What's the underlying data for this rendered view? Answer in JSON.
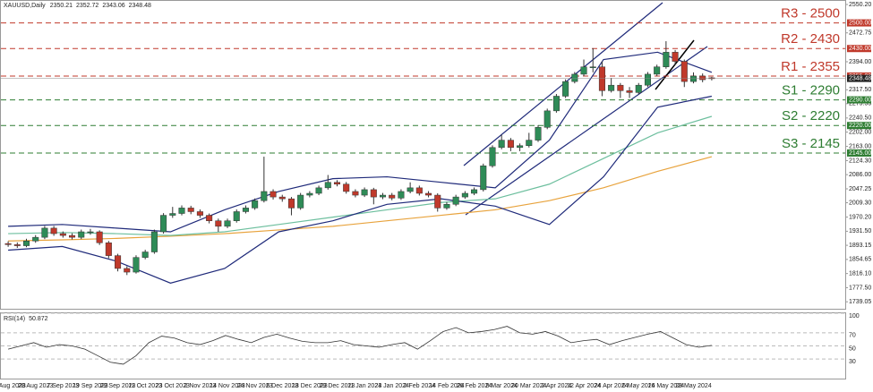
{
  "chart_data": {
    "type": "candlestick",
    "symbol": "XAUUSD,Daily",
    "up_color": "#2e8b57",
    "down_color": "#c0392b",
    "open": [
      1898,
      1895,
      1892,
      1905,
      1915,
      1940,
      1925,
      1920,
      1915,
      1930,
      1930,
      1900,
      1865,
      1830,
      1820,
      1860,
      1875,
      1930,
      1975,
      1980,
      1995,
      1985,
      1975,
      1960,
      1945,
      1960,
      1985,
      1995,
      2015,
      2040,
      2025,
      2020,
      1995,
      2030,
      2035,
      2050,
      2065,
      2060,
      2040,
      2030,
      2045,
      2025,
      2030,
      2022,
      2040,
      2050,
      2035,
      2030,
      1995,
      2005,
      2025,
      2035,
      2045,
      2110,
      2160,
      2180,
      2160,
      2165,
      2180,
      2215,
      2260,
      2300,
      2340,
      2360,
      2380,
      2380,
      2315,
      2330,
      2315,
      2310,
      2330,
      2360,
      2380,
      2420,
      2395,
      2340,
      2355,
      2350.21
    ],
    "high": [
      1904,
      1901,
      1911,
      1921,
      1946,
      1946,
      1931,
      1926,
      1936,
      1938,
      1934,
      1905,
      1870,
      1836,
      1866,
      1881,
      1936,
      1981,
      1998,
      2002,
      2001,
      1991,
      1980,
      1966,
      1966,
      1991,
      2002,
      2021,
      2135,
      2046,
      2031,
      2025,
      2036,
      2041,
      2056,
      2085,
      2071,
      2066,
      2046,
      2051,
      2050,
      2036,
      2036,
      2046,
      2065,
      2056,
      2041,
      2035,
      2011,
      2031,
      2041,
      2051,
      2116,
      2166,
      2195,
      2186,
      2171,
      2200,
      2221,
      2266,
      2306,
      2346,
      2366,
      2400,
      2431,
      2395,
      2350,
      2336,
      2325,
      2336,
      2366,
      2386,
      2450,
      2426,
      2400,
      2365,
      2362,
      2352.72
    ],
    "low": [
      1889,
      1886,
      1888,
      1900,
      1910,
      1919,
      1914,
      1909,
      1910,
      1922,
      1894,
      1858,
      1822,
      1812,
      1816,
      1855,
      1870,
      1925,
      1968,
      1975,
      1978,
      1968,
      1953,
      1930,
      1940,
      1955,
      1980,
      1990,
      2010,
      2018,
      2012,
      1975,
      1990,
      2024,
      2030,
      2045,
      2054,
      2034,
      2024,
      2025,
      2005,
      2019,
      2016,
      2017,
      2035,
      2029,
      2024,
      1985,
      1990,
      2000,
      2020,
      2030,
      2040,
      2105,
      2155,
      2150,
      2150,
      2160,
      2175,
      2210,
      2255,
      2295,
      2335,
      2355,
      2365,
      2300,
      2310,
      2295,
      2295,
      2305,
      2325,
      2355,
      2375,
      2385,
      2325,
      2335,
      2338,
      2343.06
    ],
    "close": [
      1895,
      1892,
      1905,
      1915,
      1940,
      1925,
      1920,
      1915,
      1930,
      1930,
      1900,
      1865,
      1830,
      1820,
      1860,
      1875,
      1930,
      1975,
      1980,
      1995,
      1985,
      1975,
      1960,
      1945,
      1960,
      1985,
      1995,
      2015,
      2040,
      2025,
      2020,
      1995,
      2030,
      2035,
      2050,
      2065,
      2060,
      2040,
      2030,
      2045,
      2025,
      2030,
      2022,
      2040,
      2050,
      2035,
      2030,
      1995,
      2005,
      2025,
      2035,
      2045,
      2110,
      2160,
      2180,
      2160,
      2165,
      2180,
      2215,
      2260,
      2300,
      2340,
      2360,
      2380,
      2380,
      2315,
      2330,
      2315,
      2310,
      2330,
      2360,
      2380,
      2420,
      2395,
      2340,
      2355,
      2345,
      2348.48
    ],
    "overlays": [
      {
        "color": "#e8a33d",
        "values": [
          1905,
          1908,
          1912,
          1918,
          1925,
          1935,
          1945,
          1960,
          1975,
          1990,
          2015,
          2050,
          2095,
          2135
        ]
      },
      {
        "color": "#6dbf9e",
        "values": [
          1925,
          1928,
          1925,
          1920,
          1930,
          1950,
          1970,
          1990,
          2010,
          2020,
          2060,
          2130,
          2200,
          2245
        ]
      },
      {
        "color": "#1f2a7a",
        "values": [
          1945,
          1950,
          1940,
          1930,
          1990,
          2040,
          2075,
          2080,
          2065,
          2050,
          2180,
          2400,
          2420,
          2365
        ]
      },
      {
        "color": "#1f2a7a",
        "values": [
          1880,
          1890,
          1850,
          1790,
          1830,
          1930,
          1960,
          2005,
          2020,
          2000,
          1950,
          2080,
          2270,
          2300
        ]
      }
    ],
    "levels": [
      {
        "label": "R3 - 2500",
        "value": 2500,
        "tag": "2500.00",
        "color": "#c0392b"
      },
      {
        "label": "R2 - 2430",
        "value": 2430,
        "tag": "2430.00",
        "color": "#c0392b"
      },
      {
        "label": "R1 - 2355",
        "value": 2355,
        "tag": "2355.00",
        "color": "#c0392b"
      },
      {
        "label": "S1 - 2290",
        "value": 2290,
        "tag": "2290.00",
        "color": "#2e7d32"
      },
      {
        "label": "S2 - 2220",
        "value": 2220,
        "tag": "2220.00",
        "color": "#2e7d32"
      },
      {
        "label": "S3 - 2145",
        "value": 2145,
        "tag": "2145.00",
        "color": "#2e7d32"
      }
    ],
    "ylim": [
      1720,
      2560
    ],
    "yticks": [
      {
        "value": 2550.2,
        "label": "2550.20"
      },
      {
        "value": 2472.75,
        "label": "2472.75"
      },
      {
        "value": 2394,
        "label": "2394.00"
      },
      {
        "value": 2317.5,
        "label": "2317.50"
      },
      {
        "value": 2279.55,
        "label": "2279.55"
      },
      {
        "value": 2240.5,
        "label": "2240.50"
      },
      {
        "value": 2202,
        "label": "2202.00"
      },
      {
        "value": 2163,
        "label": "2163.00"
      },
      {
        "value": 2124.3,
        "label": "2124.30"
      },
      {
        "value": 2086,
        "label": "2086.00"
      },
      {
        "value": 2047.25,
        "label": "2047.25"
      },
      {
        "value": 2009.3,
        "label": "2009.30"
      },
      {
        "value": 1970.2,
        "label": "1970.20"
      },
      {
        "value": 1931.5,
        "label": "1931.50"
      },
      {
        "value": 1893.15,
        "label": "1893.15"
      },
      {
        "value": 1854.65,
        "label": "1854.65"
      },
      {
        "value": 1816.1,
        "label": "1816.10"
      },
      {
        "value": 1777.5,
        "label": "1777.50"
      },
      {
        "value": 1739.05,
        "label": "1739.05"
      }
    ],
    "date_labels": [
      "16 Aug 2023",
      "28 Aug 2023",
      "7 Sep 2023",
      "19 Sep 2023",
      "29 Sep 2023",
      "11 Oct 2023",
      "23 Oct 2023",
      "2 Nov 2023",
      "14 Nov 2023",
      "24 Nov 2023",
      "6 Dec 2023",
      "18 Dec 2023",
      "29 Dec 2023",
      "11 Jan 2024",
      "23 Jan 2024",
      "2 Feb 2024",
      "14 Feb 2024",
      "26 Feb 2024",
      "8 Mar 2024",
      "20 Mar 2024",
      "2 Apr 2024",
      "12 Apr 2024",
      "24 Apr 2024",
      "6 May 2024",
      "16 May 2024",
      "28 May 2024"
    ],
    "rsi": {
      "title": "RSI(14)",
      "color": "#333333",
      "values": [
        45,
        50,
        55,
        48,
        52,
        50,
        45,
        35,
        25,
        22,
        35,
        55,
        65,
        62,
        55,
        52,
        58,
        66,
        60,
        55,
        63,
        68,
        62,
        57,
        55,
        55,
        58,
        52,
        50,
        48,
        52,
        55,
        45,
        58,
        72,
        78,
        70,
        72,
        75,
        80,
        70,
        68,
        72,
        65,
        55,
        58,
        60,
        52,
        58,
        63,
        68,
        72,
        62,
        52,
        48,
        50.872
      ],
      "ylim": [
        0,
        100
      ],
      "yticks": [
        30,
        50,
        70,
        100
      ]
    }
  }
}
